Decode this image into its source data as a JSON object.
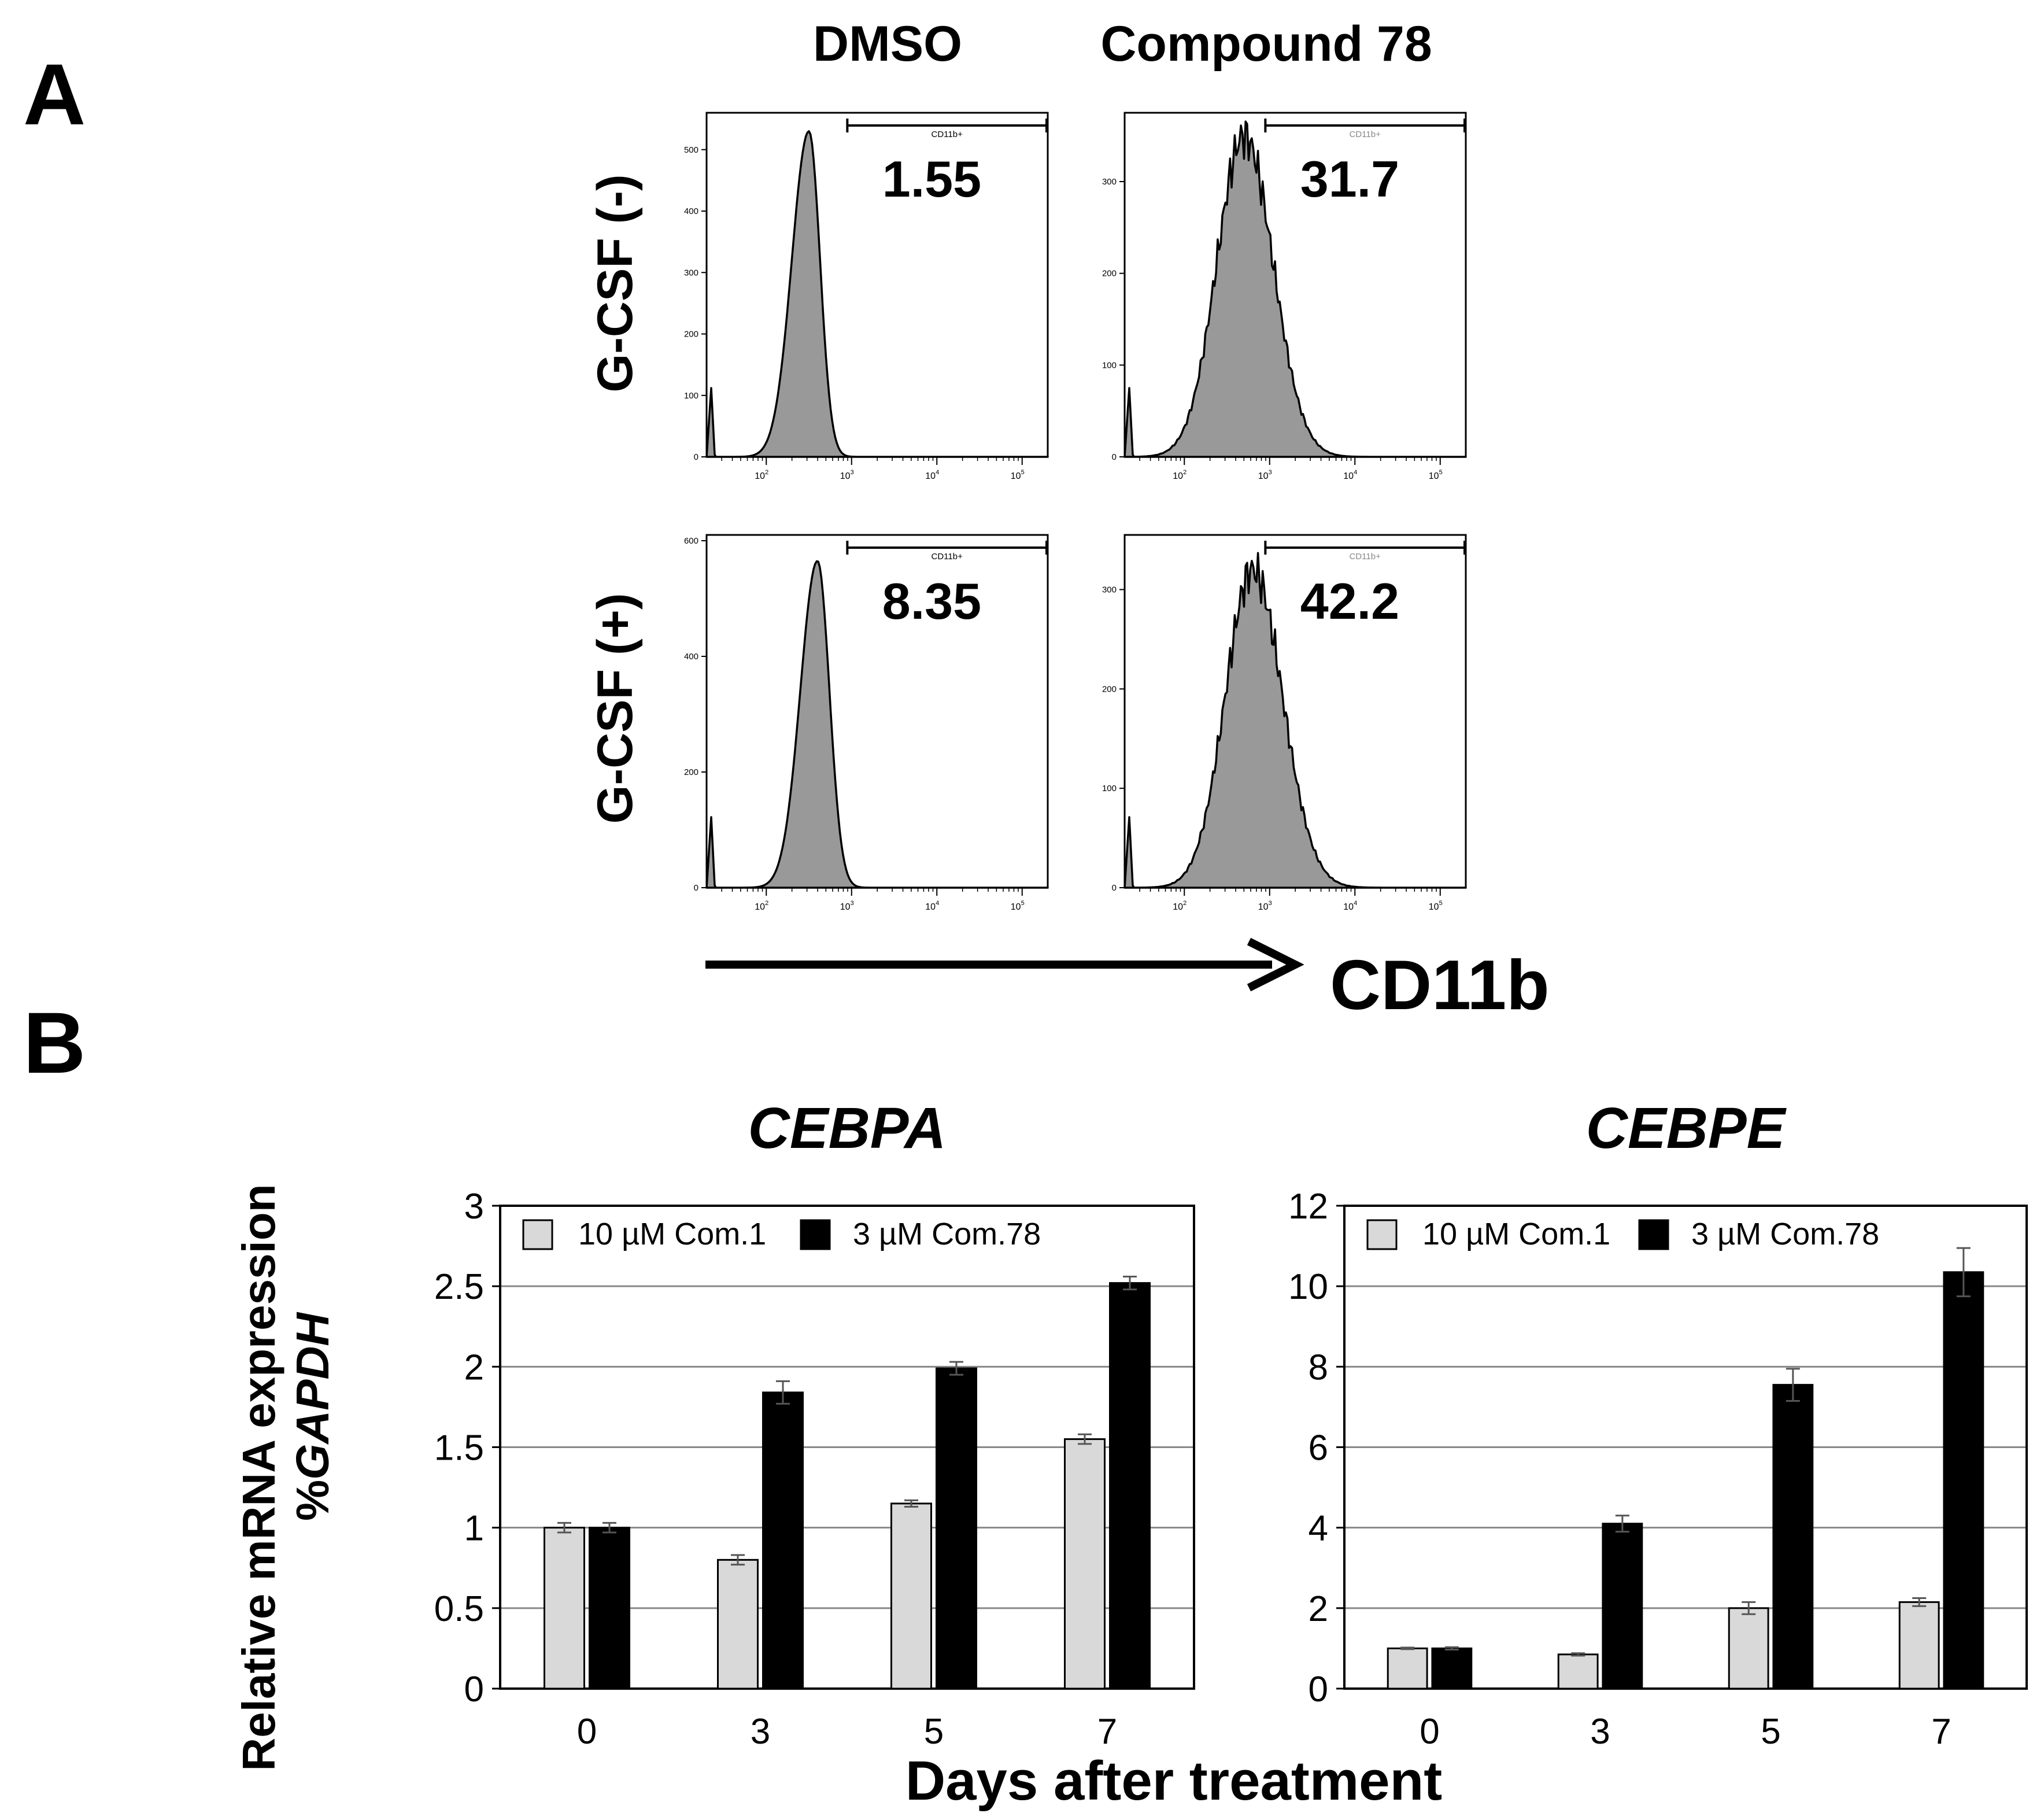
{
  "panel_a": {
    "label": "A",
    "column_headers": [
      "DMSO",
      "Compound 78"
    ],
    "row_headers": [
      "G-CSF (-)",
      "G-CSF (+)"
    ],
    "gate_label": "CD11b+",
    "x_axis_label": "CD11b",
    "x_ticks": [
      "10",
      "10",
      "10",
      "10"
    ],
    "x_tick_exponents": [
      "2",
      "3",
      "4",
      "5"
    ]
  },
  "panel_b": {
    "label": "B",
    "y_axis_label_line1": "Relative mRNA expression",
    "y_axis_label_line2_prefix": "%",
    "y_axis_label_line2_italic": "GAPDH",
    "x_axis_label": "Days after treatment"
  },
  "colors": {
    "histogram_fill": "#999999",
    "bar_com1": "#d9d9d9",
    "bar_com78": "#000000",
    "gridline": "#888888"
  },
  "chart_data": [
    {
      "type": "histogram",
      "title": "DMSO / G-CSF (-)",
      "condition": "DMSO",
      "gcsf": "G-CSF (-)",
      "value_label": "1.55",
      "x_scale": "log",
      "xlim": [
        1.3,
        5.3
      ],
      "ylim": [
        0,
        560
      ],
      "y_ticks": [
        0,
        100,
        200,
        300,
        400,
        500
      ],
      "gate": [
        2.95,
        5.3
      ],
      "peak_log": 2.5,
      "peak_count": 530,
      "spread_left": 0.2,
      "spread_right": 0.13
    },
    {
      "type": "histogram",
      "title": "Compound 78 / G-CSF (-)",
      "condition": "Compound 78",
      "gcsf": "G-CSF (-)",
      "value_label": "31.7",
      "x_scale": "log",
      "xlim": [
        1.3,
        5.3
      ],
      "ylim": [
        0,
        375
      ],
      "y_ticks": [
        0,
        100,
        200,
        300
      ],
      "gate": [
        2.95,
        5.3
      ],
      "peak_log": 2.7,
      "peak_count": 350,
      "spread_left": 0.32,
      "spread_right": 0.34
    },
    {
      "type": "histogram",
      "title": "DMSO / G-CSF (+)",
      "condition": "DMSO",
      "gcsf": "G-CSF (+)",
      "value_label": "8.35",
      "x_scale": "log",
      "xlim": [
        1.3,
        5.3
      ],
      "ylim": [
        0,
        610
      ],
      "y_ticks": [
        0,
        200,
        400,
        600
      ],
      "gate": [
        2.95,
        5.3
      ],
      "peak_log": 2.6,
      "peak_count": 565,
      "spread_left": 0.2,
      "spread_right": 0.14
    },
    {
      "type": "histogram",
      "title": "Compound 78 / G-CSF (+)",
      "condition": "Compound 78",
      "gcsf": "G-CSF (+)",
      "value_label": "42.2",
      "x_scale": "log",
      "xlim": [
        1.3,
        5.3
      ],
      "ylim": [
        0,
        355
      ],
      "y_ticks": [
        0,
        100,
        200,
        300
      ],
      "gate": [
        2.95,
        5.3
      ],
      "peak_log": 2.8,
      "peak_count": 320,
      "spread_left": 0.32,
      "spread_right": 0.35
    },
    {
      "type": "bar",
      "title": "CEBPA",
      "categories": [
        "0",
        "3",
        "5",
        "7"
      ],
      "xlabel": "Days after treatment",
      "ylabel": "Relative mRNA expression %GAPDH",
      "ylim": [
        0,
        3
      ],
      "y_ticks": [
        "0",
        "0.5",
        "1",
        "1.5",
        "2",
        "2.5",
        "3"
      ],
      "y_tick_values": [
        0,
        0.5,
        1,
        1.5,
        2,
        2.5,
        3
      ],
      "series": [
        {
          "name": "10 µM Com.1",
          "values": [
            1.0,
            0.8,
            1.15,
            1.55
          ],
          "errors": [
            0.03,
            0.03,
            0.02,
            0.03
          ]
        },
        {
          "name": "3 µM Com.78",
          "values": [
            1.0,
            1.84,
            1.99,
            2.52
          ],
          "errors": [
            0.03,
            0.07,
            0.04,
            0.04
          ]
        }
      ]
    },
    {
      "type": "bar",
      "title": "CEBPE",
      "categories": [
        "0",
        "3",
        "5",
        "7"
      ],
      "xlabel": "Days after treatment",
      "ylabel": "Relative mRNA expression %GAPDH",
      "ylim": [
        0,
        12
      ],
      "y_ticks": [
        "0",
        "2",
        "4",
        "6",
        "8",
        "10",
        "12"
      ],
      "y_tick_values": [
        0,
        2,
        4,
        6,
        8,
        10,
        12
      ],
      "series": [
        {
          "name": "10 µM Com.1",
          "values": [
            1.0,
            0.85,
            2.0,
            2.15
          ],
          "errors": [
            0.02,
            0.03,
            0.15,
            0.1
          ]
        },
        {
          "name": "3 µM Com.78",
          "values": [
            1.0,
            4.1,
            7.55,
            10.35
          ],
          "errors": [
            0.03,
            0.2,
            0.4,
            0.6
          ]
        }
      ]
    }
  ]
}
